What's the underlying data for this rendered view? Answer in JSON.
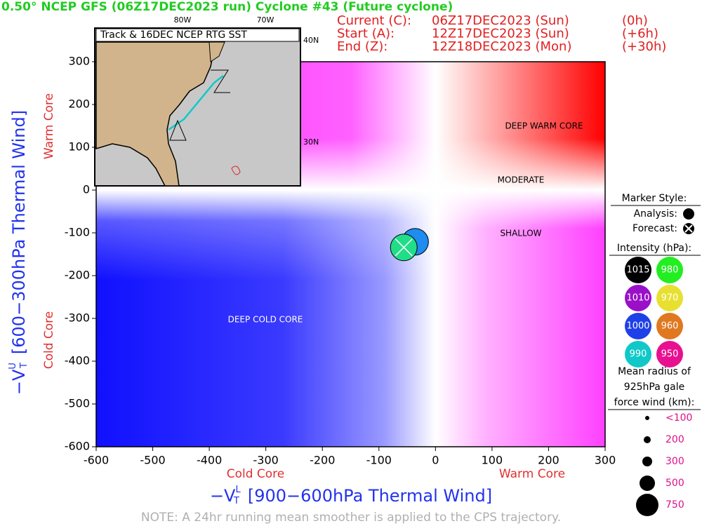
{
  "chart_data": {
    "type": "scatter",
    "title": "0.50° NCEP GFS (06Z17DEC2023 run) Cyclone #43 (Future cyclone)",
    "times": [
      [
        "Current (C):",
        "06Z17DEC2023 (Sun)",
        "(0h)"
      ],
      [
        "Start (A):",
        "12Z17DEC2023 (Sun)",
        "(+6h)"
      ],
      [
        "End (Z):",
        "12Z18DEC2023 (Mon)",
        "(+30h)"
      ]
    ],
    "x_label": {
      "prefix": "−V",
      "sub": "T",
      "sup": "L",
      "text": "[900−600hPa Thermal Wind]"
    },
    "y_label": {
      "prefix": "−V",
      "sub": "T",
      "sup": "U",
      "text": "[600−300hPa Thermal Wind]"
    },
    "x_sides": [
      "Cold Core",
      "Warm Core"
    ],
    "y_sides": [
      "Warm Core",
      "Cold Core"
    ],
    "regions": [
      "DEEP WARM CORE",
      "MODERATE",
      "SHALLOW",
      "DEEP COLD CORE"
    ],
    "xlim": [
      -600,
      300
    ],
    "ylim": [
      -600,
      300
    ],
    "xticks": [
      -600,
      -500,
      -400,
      -300,
      -200,
      -100,
      0,
      100,
      200,
      300
    ],
    "yticks": [
      -600,
      -500,
      -400,
      -300,
      -200,
      -100,
      0,
      100,
      200,
      300
    ],
    "x": [
      -36,
      -56
    ],
    "values": [
      -121,
      -134
    ],
    "colors": [
      "#1e8cf0",
      "#22dd88"
    ],
    "inset": {
      "title": "Track & 16DEC NCEP RTG SST",
      "lon_labels": [
        "80W",
        "70W"
      ],
      "lat_labels": [
        "40N",
        "30N"
      ]
    },
    "legend": {
      "marker_title": "Marker Style:",
      "analysis": "Analysis:",
      "forecast": "Forecast:",
      "intensity_title": "Intensity (hPa):",
      "intensity": [
        {
          "label": "1015",
          "color": "#000000"
        },
        {
          "label": "980",
          "color": "#22ee22"
        },
        {
          "label": "1010",
          "color": "#9a10c8"
        },
        {
          "label": "970",
          "color": "#e8e030"
        },
        {
          "label": "1000",
          "color": "#1e40e8"
        },
        {
          "label": "960",
          "color": "#e07820"
        },
        {
          "label": "990",
          "color": "#10c8c8"
        },
        {
          "label": "950",
          "color": "#e81090"
        }
      ],
      "gale_title": [
        "Mean radius of",
        "925hPa gale",
        "force wind (km):"
      ],
      "gale_sizes": [
        "<100",
        "200",
        "300",
        "500",
        "750"
      ]
    },
    "note": "NOTE:  A 24hr running mean smoother is applied to the CPS trajectory."
  }
}
